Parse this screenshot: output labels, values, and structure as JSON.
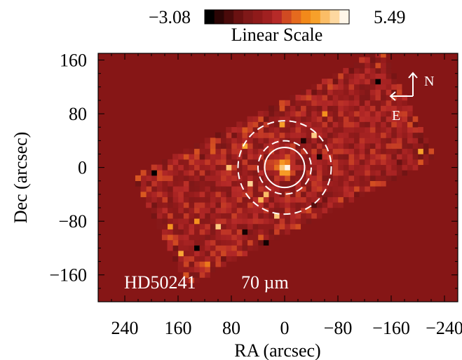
{
  "chart_data": {
    "type": "heatmap",
    "title": "",
    "target_label": "HD50241",
    "band_label": "70 µm",
    "xlabel": "RA (arcsec)",
    "ylabel": "Dec (arcsec)",
    "xlim": [
      280,
      -260
    ],
    "ylim": [
      -200,
      170
    ],
    "x_ticks": [
      240,
      160,
      80,
      0,
      -80,
      -160,
      -240
    ],
    "y_ticks": [
      160,
      80,
      0,
      -80,
      -160
    ],
    "x_tick_labels": [
      "240",
      "160",
      "80",
      "0",
      "−80",
      "−160",
      "−240"
    ],
    "y_tick_labels": [
      "160",
      "80",
      "0",
      "−80",
      "−160"
    ],
    "colorbar": {
      "min": -3.08,
      "max": 5.49,
      "min_label": "−3.08",
      "max_label": "5.49",
      "label": "Linear Scale",
      "colors": [
        "#000000",
        "#2b0505",
        "#4a0a0a",
        "#6a1111",
        "#7f1818",
        "#8f1a1a",
        "#a02020",
        "#b62a28",
        "#d04a22",
        "#e56a1e",
        "#f2891a",
        "#f7a02a",
        "#fbbd66",
        "#fdd8a0",
        "#fff6e8"
      ]
    },
    "background_value": 0.5,
    "source": {
      "x": 0,
      "y": 0,
      "peak": 5.49
    },
    "apertures": [
      {
        "radius": 30,
        "style": "solid"
      },
      {
        "radius": 40,
        "style": "dashed"
      },
      {
        "radius": 70,
        "style": "dashed"
      }
    ],
    "compass": {
      "north_label": "N",
      "east_label": "E"
    },
    "colors": {
      "background_fill": "#861616",
      "aperture": "#ffffff",
      "annotation_text": "#ffffff"
    }
  }
}
